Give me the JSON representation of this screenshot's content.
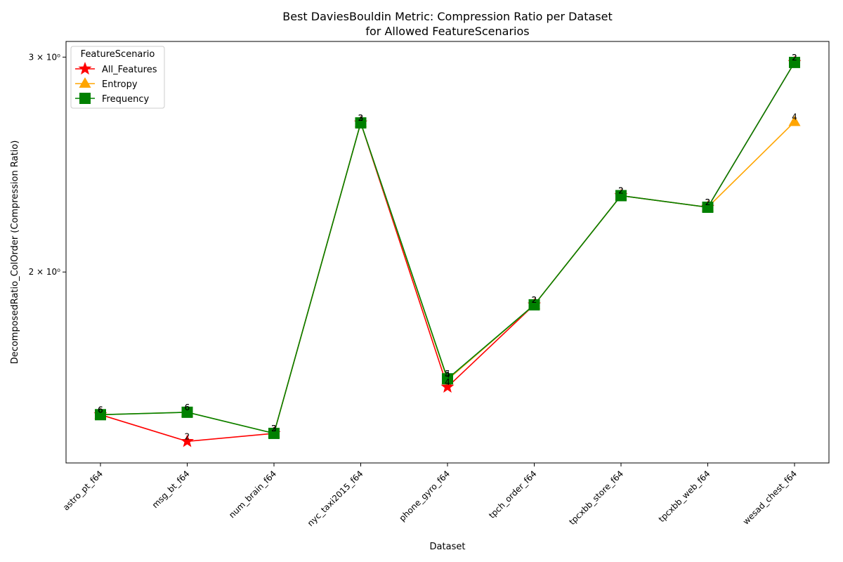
{
  "chart_data": {
    "type": "line",
    "title_line1": "Best DaviesBouldin Metric: Compression Ratio per Dataset",
    "title_line2": "for Allowed FeatureScenarios",
    "xlabel": "Dataset",
    "ylabel": "DecomposedRatio_ColOrder (Compression Ratio)",
    "yscale": "log",
    "ylim": [
      1.395,
      3.09
    ],
    "yticks": [
      {
        "value": 2,
        "label": "2 × 10⁰"
      },
      {
        "value": 3,
        "label": "3 × 10⁰"
      }
    ],
    "grid": false,
    "legend": {
      "title": "FeatureScenario",
      "placement": "top-left"
    },
    "categories": [
      "astro_pt_f64",
      "msg_bt_f64",
      "num_brain_f64",
      "nyc_taxi2015_f64",
      "phone_gyro_f64",
      "tpch_order_f64",
      "tpcxbb_store_f64",
      "tpcxbb_web_f64",
      "wesad_chest_f64"
    ],
    "series": [
      {
        "name": "All_Features",
        "color": "#ff0000",
        "marker": "star",
        "values": [
          1.528,
          1.453,
          1.475,
          2.65,
          1.61,
          1.88,
          2.31,
          2.26,
          2.97
        ],
        "labels": [
          "6",
          "2",
          "2",
          "2",
          "4",
          "2",
          "2",
          "2",
          "2"
        ]
      },
      {
        "name": "Entropy",
        "color": "#ffa500",
        "marker": "triangle",
        "values": [
          1.528,
          1.535,
          1.475,
          2.65,
          1.632,
          1.88,
          2.31,
          2.26,
          2.655
        ],
        "labels": [
          "6",
          "6",
          "3",
          "3",
          "4",
          "2",
          "2",
          "2",
          "4"
        ]
      },
      {
        "name": "Frequency",
        "color": "#008000",
        "marker": "square",
        "values": [
          1.528,
          1.535,
          1.475,
          2.65,
          1.635,
          1.88,
          2.31,
          2.26,
          2.97
        ],
        "labels": [
          "6",
          "6",
          "3",
          "3",
          "5",
          "2",
          "2",
          "2",
          "2"
        ]
      }
    ]
  }
}
